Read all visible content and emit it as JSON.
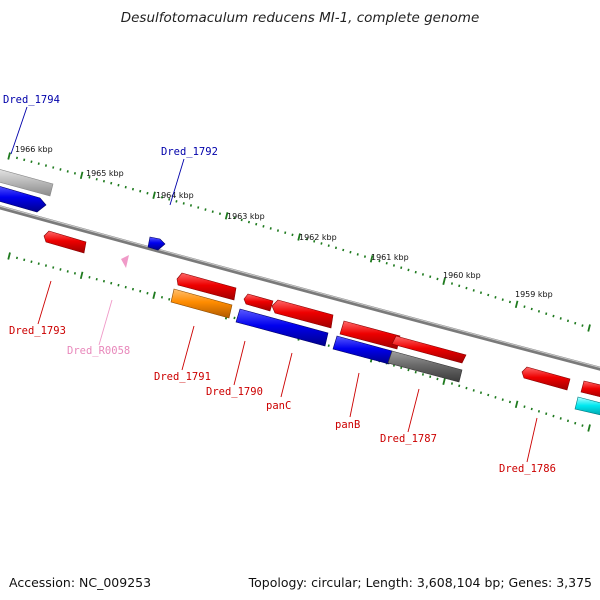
{
  "title": "Desulfotomaculum reducens MI-1, complete genome",
  "footer": {
    "accession": "Accession: NC_009253",
    "topology": "Topology: circular; Length: 3,608,104 bp; Genes: 3,375"
  },
  "scale_labels": [
    "1966 kbp",
    "1965 kbp",
    "1964 kbp",
    "1963 kbp",
    "1962 kbp",
    "1961 kbp",
    "1960 kbp",
    "1959 kbp"
  ],
  "gene_labels": {
    "dred_1794": "Dred_1794",
    "dred_1792": "Dred_1792",
    "dred_1793": "Dred_1793",
    "dred_r0058": "Dred_R0058",
    "dred_1791": "Dred_1791",
    "dred_1790": "Dred_1790",
    "panc": "panC",
    "panb": "panB",
    "dred_1787": "Dred_1787",
    "dred_1786": "Dred_1786"
  },
  "colors": {
    "red": "#e00000",
    "blue": "#0000dd",
    "orange": "#ff8c00",
    "gray": "#707070",
    "light_gray": "#b8b8b8",
    "cyan": "#00e5ee",
    "pink": "#f09ac8",
    "tick_green": "#1e7a1e",
    "label_blue": "#0000aa",
    "label_red": "#cc0000",
    "label_pink": "#e888bb"
  }
}
